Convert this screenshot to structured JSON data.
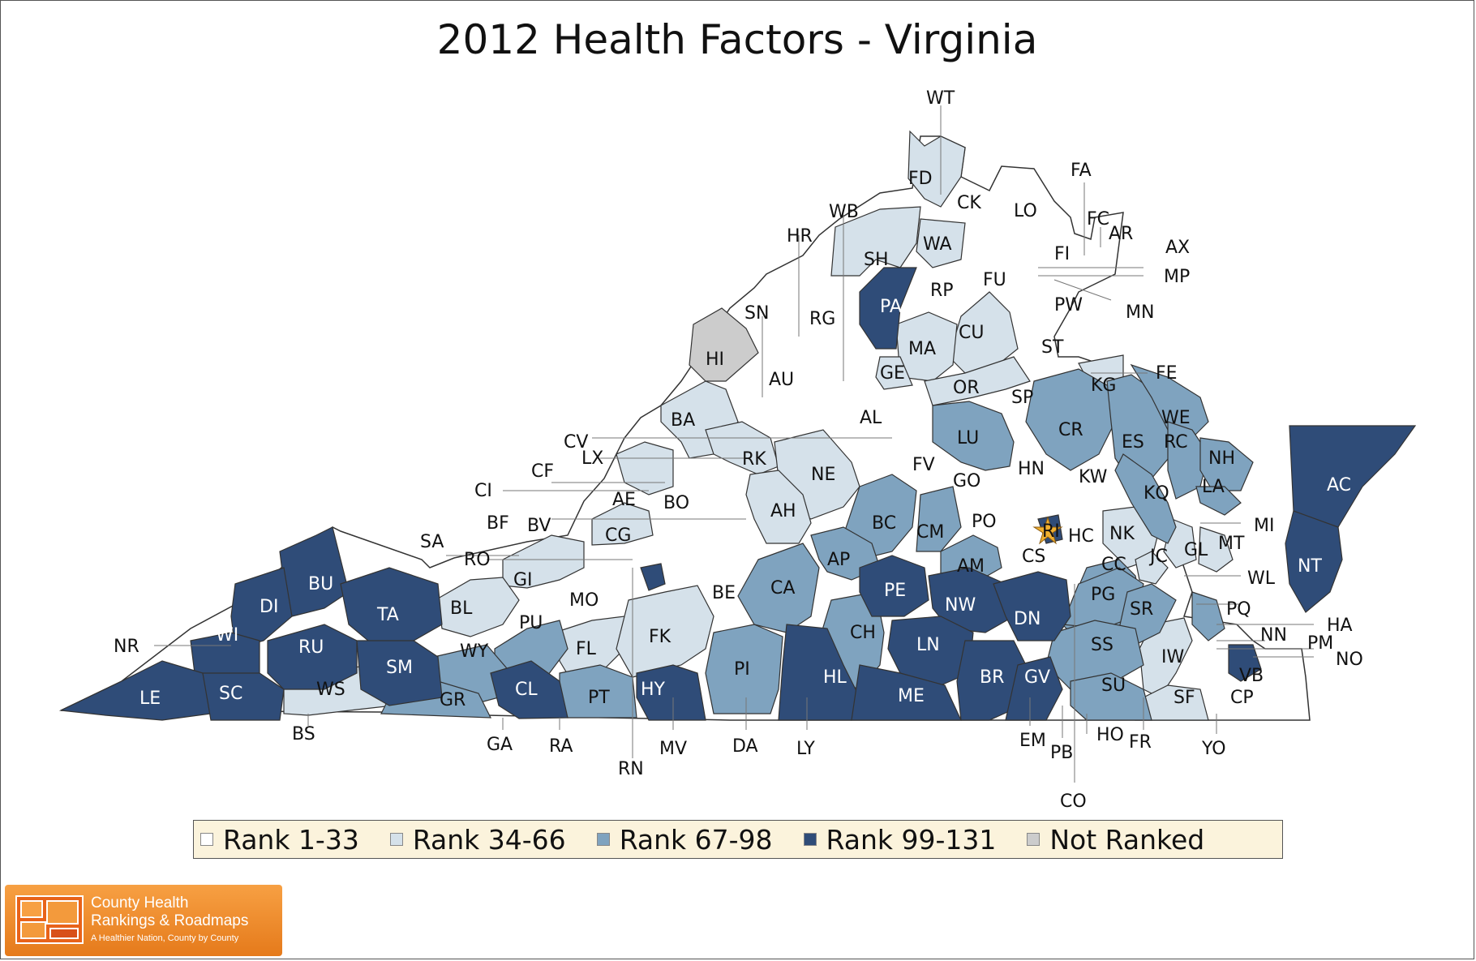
{
  "title": "2012 Health Factors - Virginia",
  "colors": {
    "rank_1_33": "#ffffff",
    "rank_34_66": "#d5e1ea",
    "rank_67_98": "#7fa3bf",
    "rank_99_131": "#2f4c78",
    "not_ranked": "#cccccc",
    "border": "#333333"
  },
  "legend": [
    {
      "label": "Rank 1-33",
      "color": "#ffffff"
    },
    {
      "label": "Rank 34-66",
      "color": "#d5e1ea"
    },
    {
      "label": "Rank 67-98",
      "color": "#7fa3bf"
    },
    {
      "label": "Rank 99-131",
      "color": "#2f4c78"
    },
    {
      "label": "Not Ranked",
      "color": "#cccccc"
    }
  ],
  "map_labels": [
    "WT",
    "FD",
    "CK",
    "LO",
    "FA",
    "FC",
    "AR",
    "AX",
    "MP",
    "MN",
    "FI",
    "WB",
    "HR",
    "SH",
    "WA",
    "FU",
    "RP",
    "PA",
    "PW",
    "SN",
    "RG",
    "CU",
    "MA",
    "ST",
    "HI",
    "AU",
    "GE",
    "OR",
    "SP",
    "KG",
    "FE",
    "BA",
    "AL",
    "LU",
    "CR",
    "WE",
    "RC",
    "ES",
    "NH",
    "CV",
    "LX",
    "RK",
    "NE",
    "FV",
    "HN",
    "KW",
    "KQ",
    "LA",
    "CF",
    "CI",
    "AE",
    "BO",
    "AH",
    "GO",
    "BC",
    "CM",
    "PO",
    "RI",
    "HC",
    "NK",
    "GL",
    "MT",
    "MI",
    "AC",
    "BF",
    "BV",
    "CG",
    "SA",
    "RO",
    "GI",
    "AP",
    "AM",
    "CS",
    "CC",
    "JC",
    "WL",
    "NT",
    "MO",
    "CA",
    "PE",
    "NW",
    "DN",
    "PG",
    "SR",
    "PQ",
    "HA",
    "NN",
    "PM",
    "NO",
    "BU",
    "DI",
    "TA",
    "BL",
    "PU",
    "WI",
    "NR",
    "RU",
    "WY",
    "FL",
    "FK",
    "PI",
    "CH",
    "LN",
    "SS",
    "IW",
    "VB",
    "LE",
    "SC",
    "SM",
    "WS",
    "GR",
    "CL",
    "PT",
    "HY",
    "HL",
    "ME",
    "BR",
    "GV",
    "SU",
    "SF",
    "CP",
    "BS",
    "GA",
    "RA",
    "RN",
    "MV",
    "DA",
    "LY",
    "EM",
    "PB",
    "HO",
    "FR",
    "YO",
    "CO",
    "BE"
  ],
  "logo": {
    "line1": "County Health",
    "line2": "Rankings & Roadmaps",
    "line3": "A Healthier Nation, County by County"
  }
}
